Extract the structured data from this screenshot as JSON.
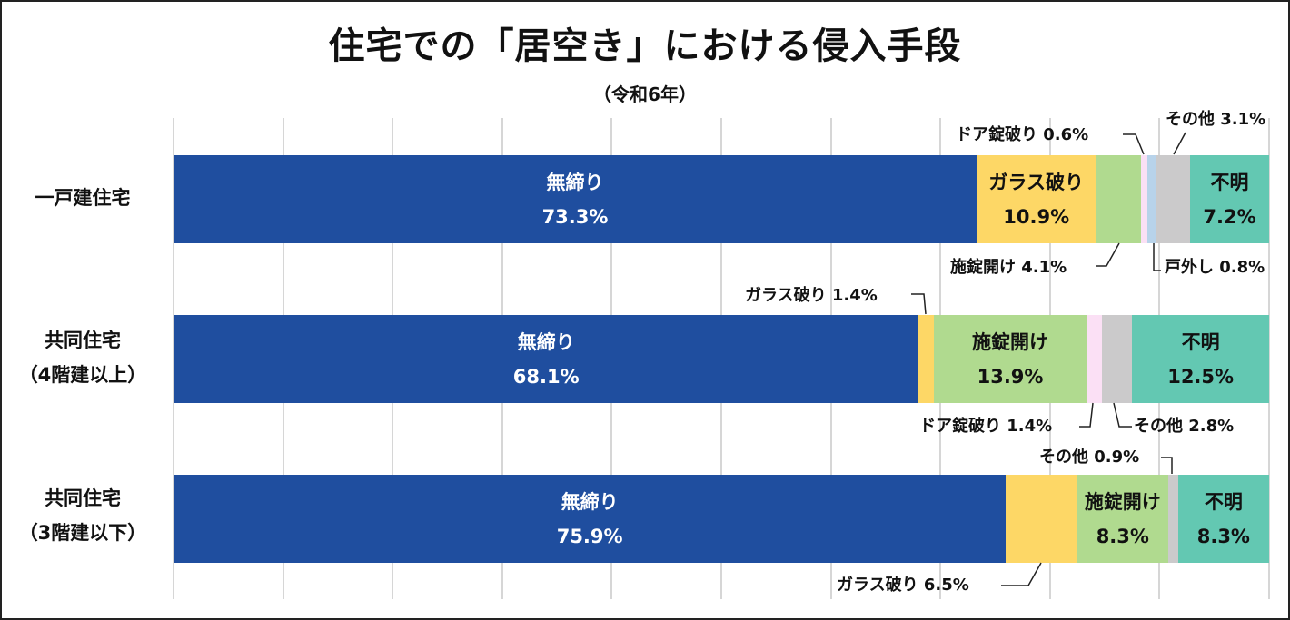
{
  "title": "住宅での「居空き」における侵入手段",
  "subtitle": "（令和6年）",
  "colors": {
    "無締り": "#1f4e9f",
    "ガラス破り": "#fdd766",
    "施錠開け": "#b0da8f",
    "ドア錠破り": "#fbe0f5",
    "戸外し": "#b8d3ea",
    "その他": "#cbcacb",
    "不明": "#63c8b2"
  },
  "categories": [
    {
      "line1": "一戸建住宅",
      "line2": ""
    },
    {
      "line1": "共同住宅",
      "line2": "（4階建以上）"
    },
    {
      "line1": "共同住宅",
      "line2": "（3階建以下）"
    }
  ],
  "rows": [
    {
      "segments": [
        {
          "name": "無締り",
          "value": 73.3,
          "label": "無締り",
          "pct": "73.3%"
        },
        {
          "name": "ガラス破り",
          "value": 10.9,
          "label": "ガラス破り",
          "pct": "10.9%"
        },
        {
          "name": "施錠開け",
          "value": 4.1,
          "label": "",
          "pct": ""
        },
        {
          "name": "ドア錠破り",
          "value": 0.6,
          "label": "",
          "pct": ""
        },
        {
          "name": "戸外し",
          "value": 0.8,
          "label": "",
          "pct": ""
        },
        {
          "name": "その他",
          "value": 3.1,
          "label": "",
          "pct": ""
        },
        {
          "name": "不明",
          "value": 7.2,
          "label": "不明",
          "pct": "7.2%"
        }
      ]
    },
    {
      "segments": [
        {
          "name": "無締り",
          "value": 68.1,
          "label": "無締り",
          "pct": "68.1%"
        },
        {
          "name": "ガラス破り",
          "value": 1.4,
          "label": "",
          "pct": ""
        },
        {
          "name": "施錠開け",
          "value": 13.9,
          "label": "施錠開け",
          "pct": "13.9%"
        },
        {
          "name": "ドア錠破り",
          "value": 1.4,
          "label": "",
          "pct": ""
        },
        {
          "name": "その他",
          "value": 2.8,
          "label": "",
          "pct": ""
        },
        {
          "name": "不明",
          "value": 12.5,
          "label": "不明",
          "pct": "12.5%"
        }
      ]
    },
    {
      "segments": [
        {
          "name": "無締り",
          "value": 75.9,
          "label": "無締り",
          "pct": "75.9%"
        },
        {
          "name": "ガラス破り",
          "value": 6.5,
          "label": "",
          "pct": ""
        },
        {
          "name": "施錠開け",
          "value": 8.3,
          "label": "施錠開け",
          "pct": "8.3%"
        },
        {
          "name": "その他",
          "value": 0.9,
          "label": "",
          "pct": ""
        },
        {
          "name": "不明",
          "value": 8.3,
          "label": "不明",
          "pct": "8.3%"
        }
      ]
    }
  ],
  "external_labels": [
    {
      "text": "ドア錠破り 0.6%",
      "row": 0
    },
    {
      "text": "その他 3.1%",
      "row": 0
    },
    {
      "text": "施錠開け 4.1%",
      "row": 0
    },
    {
      "text": "戸外し 0.8%",
      "row": 0
    },
    {
      "text": "ガラス破り 1.4%",
      "row": 1
    },
    {
      "text": "ドア錠破り 1.4%",
      "row": 1
    },
    {
      "text": "その他 2.8%",
      "row": 1
    },
    {
      "text": "その他 0.9%",
      "row": 2
    },
    {
      "text": "ガラス破り 6.5%",
      "row": 2
    }
  ],
  "chart_data": {
    "type": "bar",
    "orientation": "horizontal",
    "stacked": "100%",
    "title": "住宅での「居空き」における侵入手段",
    "subtitle": "（令和6年）",
    "categories": [
      "一戸建住宅",
      "共同住宅（4階建以上）",
      "共同住宅（3階建以下）"
    ],
    "series": [
      {
        "name": "無締り",
        "values": [
          73.3,
          68.1,
          75.9
        ]
      },
      {
        "name": "ガラス破り",
        "values": [
          10.9,
          1.4,
          6.5
        ]
      },
      {
        "name": "施錠開け",
        "values": [
          4.1,
          13.9,
          8.3
        ]
      },
      {
        "name": "ドア錠破り",
        "values": [
          0.6,
          1.4,
          0
        ]
      },
      {
        "name": "戸外し",
        "values": [
          0.8,
          0,
          0
        ]
      },
      {
        "name": "その他",
        "values": [
          3.1,
          2.8,
          0.9
        ]
      },
      {
        "name": "不明",
        "values": [
          7.2,
          12.5,
          8.3
        ]
      }
    ],
    "xlabel": "",
    "ylabel": "",
    "xlim": [
      0,
      100
    ],
    "grid": true,
    "legend": "none (inline data labels)"
  }
}
